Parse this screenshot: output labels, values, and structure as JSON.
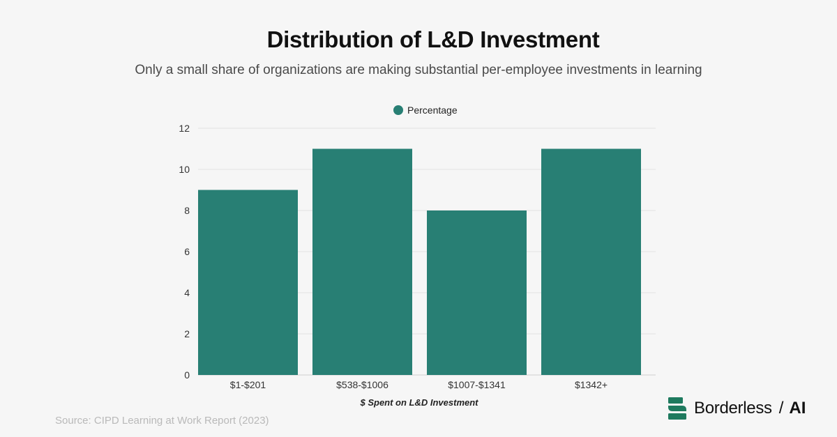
{
  "header": {
    "title": "Distribution of L&D Investment",
    "subtitle": "Only a small share of organizations are making substantial per-employee investments in learning"
  },
  "footer": {
    "source": "Source: CIPD Learning at Work Report (2023)"
  },
  "brand": {
    "name": "Borderless",
    "separator": "/",
    "suffix": "AI",
    "logo_color": "#1e7a5e"
  },
  "chart_data": {
    "type": "bar",
    "categories": [
      "$1-$201",
      "$538-$1006",
      "$1007-$1341",
      "$1342+"
    ],
    "series": [
      {
        "name": "Percentage",
        "values": [
          9,
          11,
          8,
          11
        ],
        "color": "#287f74"
      }
    ],
    "xlabel": "$ Spent on L&D Investment",
    "ylabel": "",
    "ylim": [
      0,
      12
    ],
    "yticks": [
      0,
      2,
      4,
      6,
      8,
      10,
      12
    ],
    "grid": true,
    "legend_position": "top-center"
  }
}
